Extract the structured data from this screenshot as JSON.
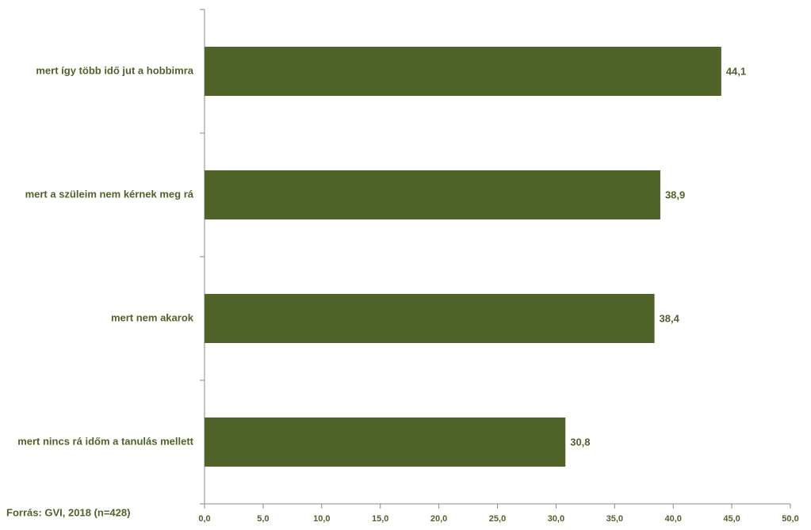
{
  "chart_data": {
    "type": "bar",
    "orientation": "horizontal",
    "categories": [
      "mert így több idő jut a hobbimra",
      "mert a szüleim nem kérnek meg rá",
      "mert nem akarok",
      "mert nincs rá időm a tanulás mellett"
    ],
    "values": [
      44.1,
      38.9,
      38.4,
      30.8
    ],
    "value_labels": [
      "44,1",
      "38,9",
      "38,4",
      "30,8"
    ],
    "color": "#4f6228",
    "xlim": [
      0,
      50
    ],
    "xticks": [
      {
        "value": 0,
        "label": "0,0"
      },
      {
        "value": 5,
        "label": "5,0"
      },
      {
        "value": 10,
        "label": "10,0"
      },
      {
        "value": 15,
        "label": "15,0"
      },
      {
        "value": 20,
        "label": "20,0"
      },
      {
        "value": 25,
        "label": "25,0"
      },
      {
        "value": 30,
        "label": "30,0"
      },
      {
        "value": 35,
        "label": "35,0"
      },
      {
        "value": 40,
        "label": "40,0"
      },
      {
        "value": 45,
        "label": "45,0"
      },
      {
        "value": 50,
        "label": "50,0"
      }
    ],
    "grid": false,
    "source": "Forrás: GVI, 2018 (n=428)"
  }
}
